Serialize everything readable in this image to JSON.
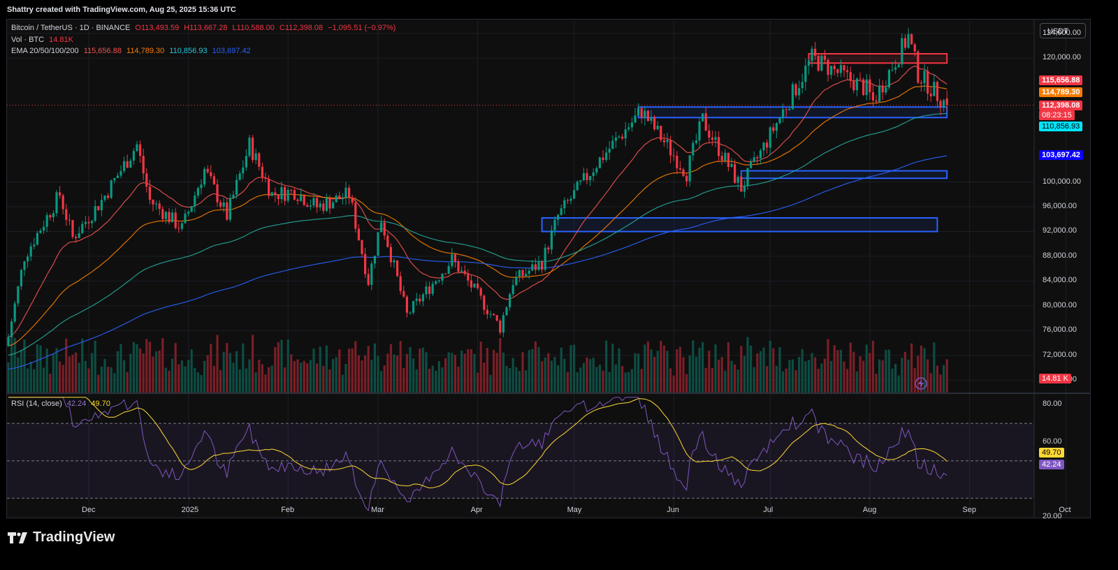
{
  "header": {
    "credit": "Shattry created with TradingView.com, Aug 25, 2025 15:36 UTC"
  },
  "legend": {
    "symbol": "Bitcoin / TetherUS · 1D · BINANCE",
    "open": "O113,493.59",
    "high": "H113,667.28",
    "low": "L110,588.00",
    "close": "C112,398.08",
    "change": "−1,095.51 (−0.97%)",
    "vol_label": "Vol · BTC",
    "vol_value": "14.81K",
    "ema_label": "EMA 20/50/100/200",
    "ema20": "115,656.88",
    "ema50": "114,789.30",
    "ema100": "110,856.93",
    "ema200": "103,697.42",
    "rsi_label": "RSI (14, close)",
    "rsi_value": "42.24",
    "rsi_ma": "49.70"
  },
  "currency_button": "USDT",
  "price_tags": {
    "ema20": "115,656.88",
    "ema50": "114,789.30",
    "last": "112,398.08",
    "countdown": "08:23:15",
    "ema100": "110,856.93",
    "ema200": "103,697.42",
    "volume": "14.81 K",
    "rsi_ma": "49.70",
    "rsi": "42.24"
  },
  "colors": {
    "up": "#089981",
    "down": "#f23645",
    "ema20": "#ef5350",
    "ema50": "#f57c00",
    "ema100": "#26a69a",
    "ema200": "#2962ff",
    "rsi": "#7e57c2",
    "rsi_ma": "#fdd835"
  },
  "brand": "TradingView",
  "chart_data": {
    "type": "candlestick",
    "title": "Bitcoin / TetherUS · 1D · BINANCE",
    "ylim": [
      66000,
      126000
    ],
    "price_ticks": [
      "124,000.00",
      "120,000.00",
      "100,000.00",
      "96,000.00",
      "92,000.00",
      "88,000.00",
      "84,000.00",
      "80,000.00",
      "76,000.00",
      "72,000.00",
      "68,000.00"
    ],
    "price_tick_values": [
      124000,
      120000,
      100000,
      96000,
      92000,
      88000,
      84000,
      80000,
      76000,
      72000,
      68000
    ],
    "x_ticks": [
      "Dec",
      "2025",
      "Feb",
      "Mar",
      "Apr",
      "May",
      "Jun",
      "Jul",
      "Aug",
      "Sep",
      "Oct"
    ],
    "x_tick_dates": [
      "2024-12-01",
      "2025-01-01",
      "2025-02-01",
      "2025-03-01",
      "2025-04-01",
      "2025-05-01",
      "2025-06-01",
      "2025-07-01",
      "2025-08-01",
      "2025-09-01",
      "2025-10-01"
    ],
    "date_range": [
      "2024-11-06",
      "2025-08-25"
    ],
    "close_anchors": [
      {
        "date": "2024-11-06",
        "close": 75000
      },
      {
        "date": "2024-11-11",
        "close": 88000
      },
      {
        "date": "2024-11-22",
        "close": 98000
      },
      {
        "date": "2024-11-26",
        "close": 91000
      },
      {
        "date": "2024-12-05",
        "close": 97000
      },
      {
        "date": "2024-12-16",
        "close": 106000
      },
      {
        "date": "2024-12-20",
        "close": 97000
      },
      {
        "date": "2024-12-30",
        "close": 92500
      },
      {
        "date": "2025-01-06",
        "close": 102000
      },
      {
        "date": "2025-01-13",
        "close": 94500
      },
      {
        "date": "2025-01-20",
        "close": 106000
      },
      {
        "date": "2025-01-27",
        "close": 98000
      },
      {
        "date": "2025-02-03",
        "close": 98500
      },
      {
        "date": "2025-02-10",
        "close": 96000
      },
      {
        "date": "2025-02-20",
        "close": 98000
      },
      {
        "date": "2025-02-26",
        "close": 84000
      },
      {
        "date": "2025-03-02",
        "close": 94000
      },
      {
        "date": "2025-03-10",
        "close": 78500
      },
      {
        "date": "2025-03-24",
        "close": 87500
      },
      {
        "date": "2025-03-31",
        "close": 82500
      },
      {
        "date": "2025-04-08",
        "close": 76500
      },
      {
        "date": "2025-04-12",
        "close": 84000
      },
      {
        "date": "2025-04-21",
        "close": 87000
      },
      {
        "date": "2025-04-26",
        "close": 94500
      },
      {
        "date": "2025-05-08",
        "close": 103000
      },
      {
        "date": "2025-05-22",
        "close": 111500
      },
      {
        "date": "2025-06-05",
        "close": 101500
      },
      {
        "date": "2025-06-10",
        "close": 110000
      },
      {
        "date": "2025-06-22",
        "close": 99000
      },
      {
        "date": "2025-07-03",
        "close": 109500
      },
      {
        "date": "2025-07-14",
        "close": 120000
      },
      {
        "date": "2025-07-31",
        "close": 115000
      },
      {
        "date": "2025-08-02",
        "close": 113000
      },
      {
        "date": "2025-08-13",
        "close": 123500
      },
      {
        "date": "2025-08-16",
        "close": 117500
      },
      {
        "date": "2025-08-25",
        "close": 112398
      }
    ],
    "ema": [
      {
        "name": "EMA 20",
        "last": 115656.88
      },
      {
        "name": "EMA 50",
        "last": 114789.3
      },
      {
        "name": "EMA 100",
        "last": 110856.93
      },
      {
        "name": "EMA 200",
        "last": 103697.42
      }
    ],
    "last": {
      "open": 113493.59,
      "high": 113667.28,
      "low": 110588.0,
      "close": 112398.08,
      "change": -1095.51,
      "change_pct": -0.97
    },
    "zones": [
      {
        "color": "red",
        "from_date": "2025-07-13",
        "to_date": "2025-08-25",
        "low": 119200,
        "high": 120700
      },
      {
        "color": "blue",
        "from_date": "2025-05-21",
        "to_date": "2025-08-25",
        "low": 110400,
        "high": 112100
      },
      {
        "color": "blue",
        "from_date": "2025-06-22",
        "to_date": "2025-08-25",
        "low": 100600,
        "high": 101800
      },
      {
        "color": "blue",
        "from_date": "2025-04-21",
        "to_date": "2025-08-22",
        "low": 92000,
        "high": 94200
      }
    ],
    "rsi": {
      "ylim": [
        20,
        85
      ],
      "ticks": [
        "80.00",
        "60.00",
        "20.00"
      ],
      "tick_values": [
        80,
        60,
        20
      ],
      "bands": [
        70,
        50,
        30
      ],
      "last": 42.24,
      "ma_last": 49.7
    }
  }
}
